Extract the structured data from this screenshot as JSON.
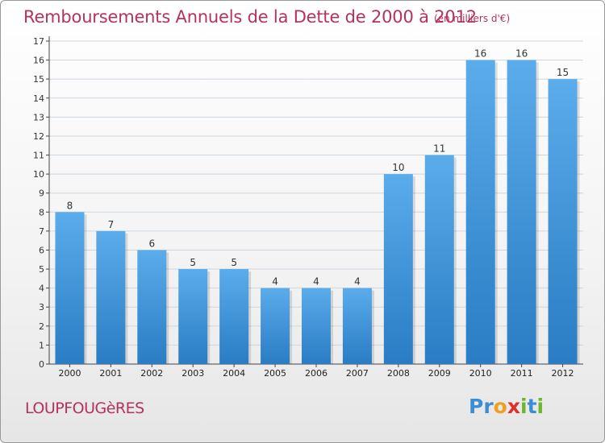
{
  "header": {
    "title": "Remboursements Annuels de la Dette de 2000 à 2012",
    "unit": "(en milliers d'€)"
  },
  "footer": {
    "commune": "LOUPFOUGèRES",
    "logo_text": "Proxiti",
    "logo_letters": [
      {
        "ch": "P",
        "color": "#3a8fd4"
      },
      {
        "ch": "r",
        "color": "#3a8fd4"
      },
      {
        "ch": "o",
        "color": "#f0a020"
      },
      {
        "ch": "x",
        "color": "#e0302c"
      },
      {
        "ch": "i",
        "color": "#6fb62f"
      },
      {
        "ch": "t",
        "color": "#3a8fd4"
      },
      {
        "ch": "i",
        "color": "#6fb62f"
      }
    ]
  },
  "colors": {
    "bar_top": "#5aaceb",
    "bar_bottom": "#2a7cc4",
    "title": "#b5325f",
    "grid": "#ccd6e0"
  },
  "chart_data": {
    "type": "bar",
    "title": "Remboursements Annuels de la Dette de 2000 à 2012",
    "subtitle": "(en milliers d'€)",
    "xlabel": "",
    "ylabel": "",
    "categories": [
      "2000",
      "2001",
      "2002",
      "2003",
      "2004",
      "2005",
      "2006",
      "2007",
      "2008",
      "2009",
      "2010",
      "2011",
      "2012"
    ],
    "values": [
      8,
      7,
      6,
      5,
      5,
      4,
      4,
      4,
      10,
      11,
      16,
      16,
      15
    ],
    "data_labels": [
      "8",
      "7",
      "6",
      "5",
      "5",
      "4",
      "4",
      "4",
      "10",
      "11",
      "16",
      "16",
      "15"
    ],
    "ylim": [
      0,
      17
    ],
    "yticks": [
      0,
      1,
      2,
      3,
      4,
      5,
      6,
      7,
      8,
      9,
      10,
      11,
      12,
      13,
      14,
      15,
      16,
      17
    ],
    "grid": true,
    "legend": "none"
  }
}
